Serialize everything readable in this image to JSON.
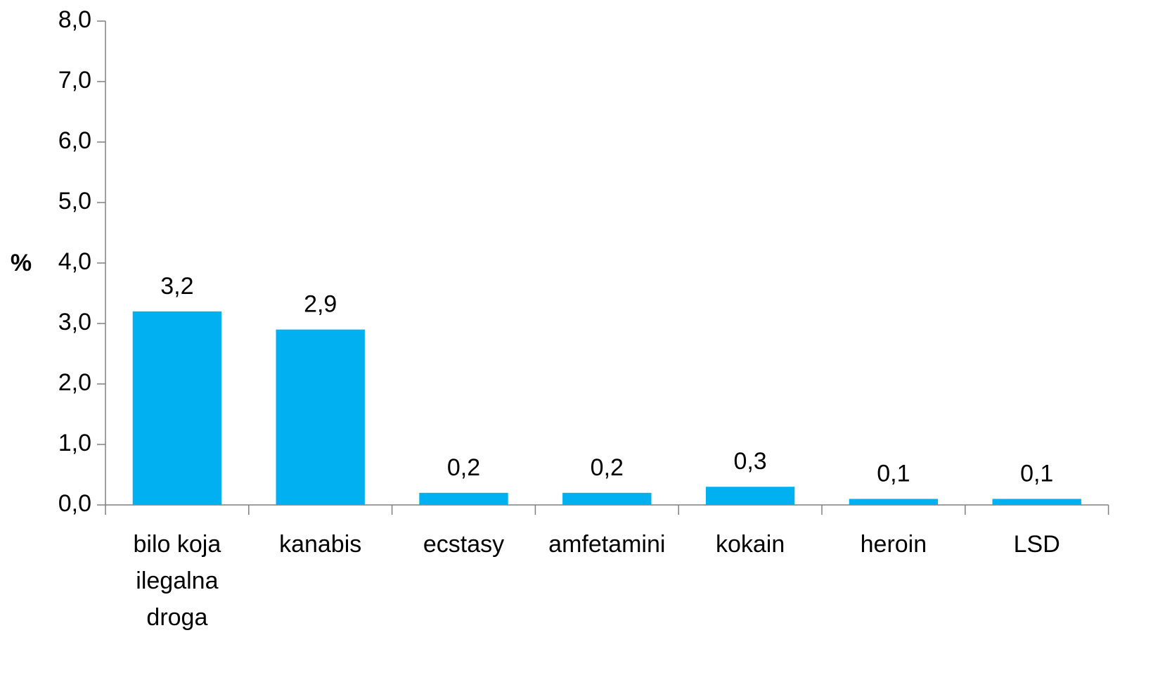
{
  "chart_data": {
    "type": "bar",
    "ylabel": "%",
    "categories": [
      "bilo koja ilegalna droga",
      "kanabis",
      "ecstasy",
      "amfetamini",
      "kokain",
      "heroin",
      "LSD"
    ],
    "values": [
      3.2,
      2.9,
      0.2,
      0.2,
      0.3,
      0.1,
      0.1
    ],
    "value_labels": [
      "3,2",
      "2,9",
      "0,2",
      "0,2",
      "0,3",
      "0,1",
      "0,1"
    ],
    "color": "#00b0f0",
    "ylim": [
      0,
      8
    ],
    "yticks": [
      {
        "value": 0,
        "label": "0,0"
      },
      {
        "value": 1,
        "label": "1,0"
      },
      {
        "value": 2,
        "label": "2,0"
      },
      {
        "value": 3,
        "label": "3,0"
      },
      {
        "value": 4,
        "label": "4,0"
      },
      {
        "value": 5,
        "label": "5,0"
      },
      {
        "value": 6,
        "label": "6,0"
      },
      {
        "value": 7,
        "label": "7,0"
      },
      {
        "value": 8,
        "label": "8,0"
      }
    ],
    "grid": false
  }
}
